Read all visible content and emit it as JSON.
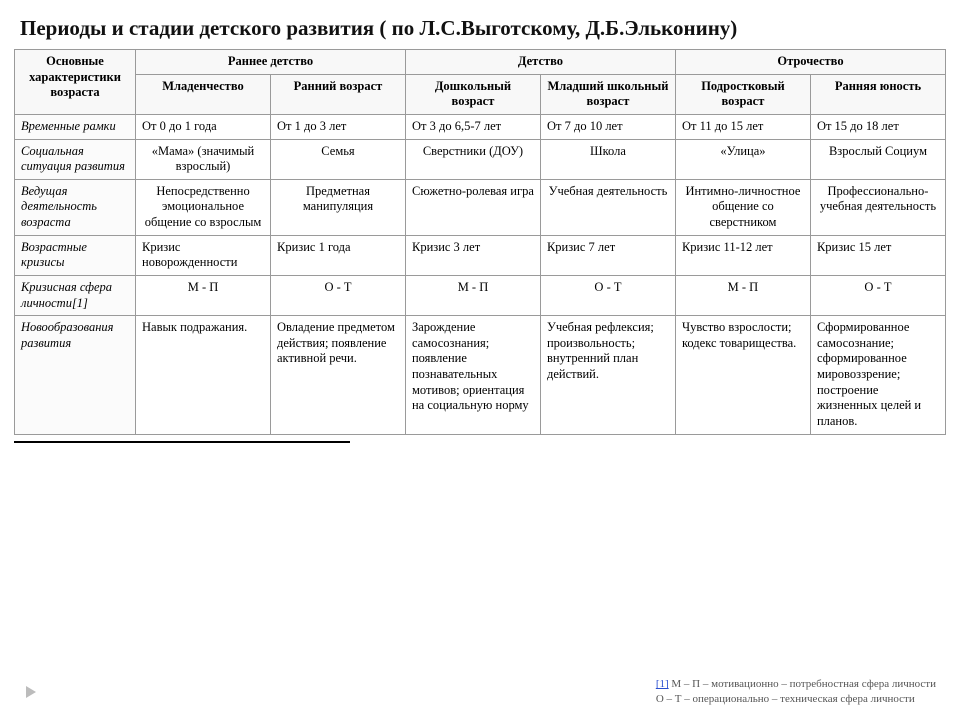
{
  "title": "Периоды и стадии детского развития ( по Л.С.Выготскому, Д.Б.Эльконину)",
  "header": {
    "corner": "Основные характеристики возраста",
    "groups": [
      "Раннее детство",
      "Детство",
      "Отрочество"
    ],
    "stages": [
      "Младенчество",
      "Ранний возраст",
      "Дошкольный возраст",
      "Младший школьный возраст",
      "Подростковый возраст",
      "Ранняя юность"
    ]
  },
  "rows": [
    {
      "label": "Временные рамки",
      "cells": [
        "От 0 до 1 года",
        "От 1 до 3 лет",
        "От 3 до 6,5-7 лет",
        "От 7 до 10 лет",
        "От 11 до 15 лет",
        "От 15 до 18 лет"
      ],
      "align": "left"
    },
    {
      "label": "Социальная ситуация развития",
      "cells": [
        "«Мама» (значимый взрослый)",
        "Семья",
        "Сверстники (ДОУ)",
        "Школа",
        "«Улица»",
        "Взрослый Социум"
      ],
      "align": "center"
    },
    {
      "label": "Ведущая деятельность возраста",
      "cells": [
        "Непосредственно эмоциональное общение со взрослым",
        "Предметная манипуляция",
        "Сюжетно-ролевая игра",
        "Учебная деятельность",
        "Интимно-личностное общение со сверстником",
        "Профессионально-учебная деятельность"
      ],
      "align": "center"
    },
    {
      "label": "Возрастные кризисы",
      "cells": [
        "Кризис новорожденности",
        "Кризис 1 года",
        "Кризис 3 лет",
        "Кризис 7 лет",
        "Кризис 11-12 лет",
        "Кризис 15 лет"
      ],
      "align": "left"
    },
    {
      "label": "Кризисная сфера личности[1]",
      "cells": [
        "М - П",
        "О - Т",
        "М - П",
        "О - Т",
        "М - П",
        "О - Т"
      ],
      "align": "center"
    },
    {
      "label": "Новообразования развития",
      "cells": [
        "Навык подражания.",
        "Овладение предметом действия; появление активной речи.",
        "Зарождение самосознания; появление познавательных мотивов; ориентация на социальную норму",
        "Учебная рефлексия; произвольность; внутренний план действий.",
        "Чувство взрослости; кодекс товарищества.",
        "Сформированное самосознание; сформированное мировоззрение; построение жизненных целей и планов."
      ],
      "align": "left"
    }
  ],
  "footnotes": {
    "link": "[1]",
    "line1": "М – П – мотивационно – потребностная сфера личности",
    "line2": "О – Т – операционально – техническая сфера личности"
  }
}
